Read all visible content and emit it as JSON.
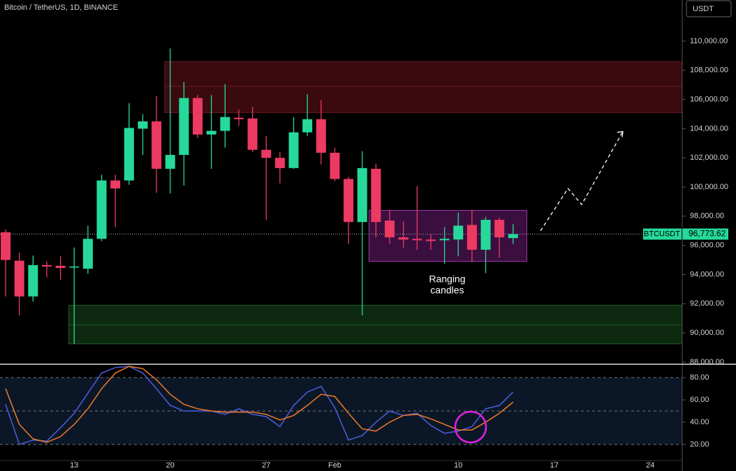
{
  "chart_data": [
    {
      "type": "candlestick",
      "title": "Bitcoin / TetherUS, 1D, BINANCE",
      "currency": "USDT",
      "up_color": "#26d99a",
      "down_color": "#ec3a62",
      "open": [
        96900,
        94950,
        92500,
        94650,
        94600,
        94500,
        94400,
        96450,
        100450,
        100450,
        104000,
        104500,
        101250,
        102200,
        106100,
        103600,
        103850,
        104750,
        104700,
        102550,
        102000,
        101300,
        103750,
        104650,
        102350,
        100550,
        97600,
        101250,
        97700,
        96550,
        96450,
        96400,
        96350,
        96400,
        97400,
        95700,
        97750,
        96500
      ],
      "high": [
        97100,
        95500,
        95300,
        94900,
        95250,
        95850,
        97350,
        100850,
        100850,
        105750,
        105000,
        106250,
        109500,
        107200,
        106300,
        106300,
        107050,
        105300,
        105500,
        103500,
        102400,
        104800,
        106350,
        105950,
        102700,
        100700,
        102450,
        101600,
        98400,
        97650,
        100050,
        96750,
        97250,
        98250,
        98450,
        97950,
        97900,
        97450
      ],
      "low": [
        92500,
        91200,
        92150,
        93800,
        93650,
        89250,
        94050,
        96300,
        97250,
        100150,
        102200,
        99600,
        99550,
        100100,
        103350,
        101250,
        102700,
        104200,
        102400,
        97750,
        100250,
        101250,
        103500,
        101550,
        100400,
        96100,
        91200,
        96550,
        96100,
        95850,
        95700,
        95700,
        94750,
        95250,
        94850,
        94100,
        95150,
        96100
      ],
      "close": [
        95000,
        92500,
        94650,
        94550,
        94450,
        94550,
        96450,
        100450,
        99900,
        104050,
        104500,
        101250,
        102200,
        106100,
        103600,
        103850,
        104800,
        104650,
        102550,
        102000,
        101300,
        103750,
        104650,
        102350,
        100550,
        97600,
        101300,
        97600,
        96550,
        96400,
        96350,
        96300,
        96450,
        97350,
        95700,
        97750,
        96550,
        96773.62
      ],
      "xlim": [
        -0.41,
        49.33
      ],
      "xticks": [
        {
          "value": 5,
          "label": "13"
        },
        {
          "value": 12,
          "label": "20"
        },
        {
          "value": 19,
          "label": "27"
        },
        {
          "value": 24,
          "label": "Feb"
        },
        {
          "value": 33,
          "label": "10"
        },
        {
          "value": 40,
          "label": "17"
        },
        {
          "value": 47,
          "label": "24"
        }
      ],
      "ylim": [
        87900,
        112820
      ],
      "yticks": [
        {
          "value": 88000,
          "label": "88,000.00"
        },
        {
          "value": 90000,
          "label": "90,000.00"
        },
        {
          "value": 92000,
          "label": "92,000.00"
        },
        {
          "value": 94000,
          "label": "94,000.00"
        },
        {
          "value": 96000,
          "label": "96,000.00"
        },
        {
          "value": 98000,
          "label": "98,000.00"
        },
        {
          "value": 100000,
          "label": "100,000.00"
        },
        {
          "value": 102000,
          "label": "102,000.00"
        },
        {
          "value": 104000,
          "label": "104,000.00"
        },
        {
          "value": 106000,
          "label": "106,000.00"
        },
        {
          "value": 108000,
          "label": "108,000.00"
        },
        {
          "value": 110000,
          "label": "110,000.00"
        }
      ],
      "last_price": {
        "symbol": "BTCUSDT",
        "value": 96773.62,
        "label": "96,773.62",
        "color": "#26d99a"
      },
      "zones": [
        {
          "top": 108600,
          "mid": 106900,
          "bottom": 105100,
          "start": 12,
          "fill": "#3a0a10",
          "stroke": "#6b1822"
        },
        {
          "top": 91900,
          "mid": 90550,
          "bottom": 89250,
          "start": 5,
          "fill": "#0d2a10",
          "stroke": "#1f5a25"
        }
      ],
      "range_box": {
        "top": 98400,
        "bottom": 94900,
        "start": 27,
        "end": 38,
        "fill": "#3a0f3f",
        "stroke": "#9a3aa0"
      },
      "annotation": [
        "Ranging",
        "candles"
      ],
      "projection": {
        "x": [
          39,
          41,
          42,
          45
        ],
        "y": [
          97000,
          99900,
          98800,
          103800
        ]
      }
    },
    {
      "type": "line",
      "series": [
        {
          "color": "#4a5fe0",
          "values": [
            56,
            20,
            24,
            23,
            35,
            48,
            66,
            84,
            89,
            90,
            84,
            70,
            55,
            50,
            50,
            50,
            47,
            52,
            47,
            45,
            36,
            55,
            67,
            72,
            53,
            24,
            28,
            40,
            50,
            46,
            48,
            37,
            30,
            32,
            36,
            52,
            55,
            67
          ]
        },
        {
          "color": "#f07a2a",
          "values": [
            70,
            38,
            25,
            22,
            27,
            38,
            52,
            70,
            84,
            90,
            88,
            78,
            65,
            56,
            52,
            50,
            49,
            49,
            49,
            47,
            42,
            46,
            55,
            65,
            63,
            48,
            34,
            32,
            40,
            46,
            47,
            43,
            38,
            33,
            33,
            40,
            48,
            58
          ]
        }
      ],
      "ylim": [
        5.6,
        91.3
      ],
      "yticks": [
        {
          "value": 20,
          "label": "20.00"
        },
        {
          "value": 40,
          "label": "40.00"
        },
        {
          "value": 60,
          "label": "60.00"
        },
        {
          "value": 80,
          "label": "80.00"
        }
      ],
      "levels": [
        20,
        50,
        80
      ]
    }
  ]
}
